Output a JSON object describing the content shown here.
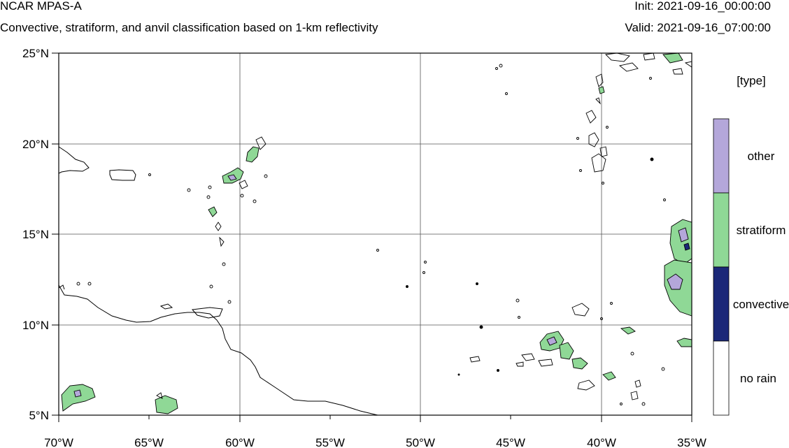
{
  "header": {
    "title": "NCAR MPAS-A",
    "subtitle": "Convective, stratiform, and anvil classification based on 1-km reflectivity",
    "init": "Init: 2021-09-16_00:00:00",
    "valid": "Valid: 2021-09-16_07:00:00"
  },
  "axes": {
    "lon_labels": [
      "70°W",
      "65°W",
      "60°W",
      "55°W",
      "50°W",
      "45°W",
      "40°W",
      "35°W"
    ],
    "lat_labels": [
      "5°N",
      "10°N",
      "15°N",
      "20°N",
      "25°N"
    ]
  },
  "legend": {
    "title": "[type]",
    "items": [
      {
        "label": "other",
        "color": "#b4a7da"
      },
      {
        "label": "stratiform",
        "color": "#8fd896"
      },
      {
        "label": "convective",
        "color": "#1b2878"
      },
      {
        "label": "no rain",
        "color": "#ffffff"
      }
    ]
  },
  "colors": {
    "other": "#b4a7da",
    "stratiform": "#8fd896",
    "convective": "#1b2878",
    "grid": "#555555"
  }
}
